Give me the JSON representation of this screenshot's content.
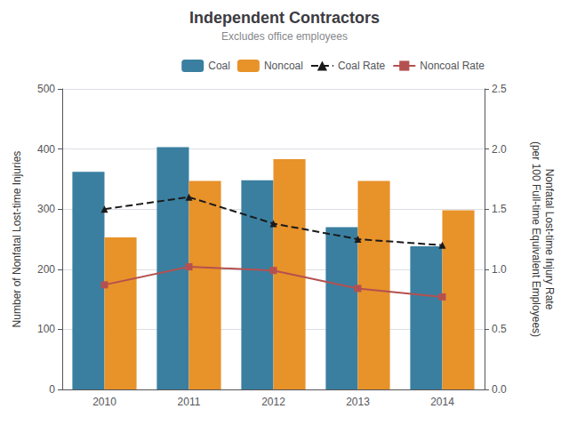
{
  "chart_data": {
    "type": "bar",
    "title": "Independent Contractors",
    "subtitle": "Excludes office employees",
    "categories": [
      "2010",
      "2011",
      "2012",
      "2013",
      "2014"
    ],
    "series": [
      {
        "name": "Coal",
        "type": "bar",
        "color": "#3a7fa0",
        "values": [
          362,
          403,
          348,
          270,
          238
        ]
      },
      {
        "name": "Noncoal",
        "type": "bar",
        "color": "#e8922a",
        "values": [
          253,
          347,
          383,
          347,
          298
        ]
      },
      {
        "name": "Coal Rate",
        "type": "line",
        "axis": "y2",
        "color": "#1a1a1a",
        "marker": "triangle",
        "line_style": "dashed",
        "values": [
          1.5,
          1.6,
          1.38,
          1.25,
          1.2
        ]
      },
      {
        "name": "Noncoal Rate",
        "type": "line",
        "axis": "y2",
        "color": "#b55050",
        "marker": "square",
        "line_style": "solid",
        "values": [
          0.87,
          1.02,
          0.99,
          0.84,
          0.77
        ]
      }
    ],
    "ylabel": "Number of Nonfatal Lost-time Injuries",
    "y2label": "Nonfatal Lost-time Injury Rate\n(per 100 Full-time Equivalent Employees)",
    "ylim": [
      0,
      500
    ],
    "yticks": [
      0,
      100,
      200,
      300,
      400,
      500
    ],
    "y2lim": [
      0.0,
      2.5
    ],
    "y2ticks": [
      {
        "value": 0,
        "label": "0.0"
      },
      0.5,
      {
        "value": 1,
        "label": "1.0"
      },
      1.5,
      {
        "value": 2,
        "label": "2.0"
      },
      2.5
    ],
    "grid": true,
    "legend": "upper right"
  }
}
